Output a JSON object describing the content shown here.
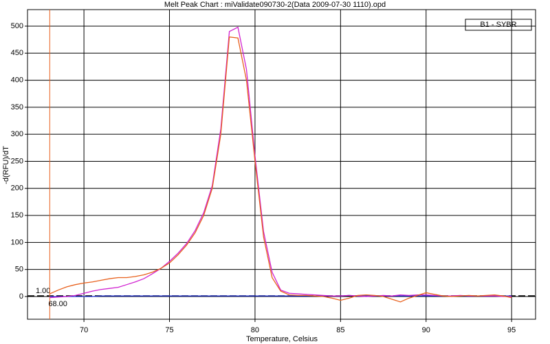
{
  "chart_data": {
    "type": "line",
    "title": "Melt Peak Chart : miValidate090730-2(Data 2009-07-30 1110).opd",
    "x_label": "Temperature, Celsius",
    "y_label": "-d(RFU)/dT",
    "x": [
      68,
      68.5,
      69,
      69.5,
      70,
      70.5,
      71,
      71.5,
      72,
      72.5,
      73,
      73.5,
      74,
      74.5,
      75,
      75.5,
      76,
      76.5,
      77,
      77.5,
      78,
      78.5,
      79,
      79.5,
      80,
      80.5,
      81,
      81.5,
      82,
      82.5,
      83,
      83.5,
      84,
      84.5,
      85,
      85.5,
      86,
      86.5,
      87,
      87.5,
      88,
      88.5,
      89,
      89.5,
      90,
      90.5,
      91,
      91.5,
      92,
      92.5,
      93,
      93.5,
      94,
      94.5,
      95
    ],
    "series": [
      {
        "name": "B1 - SYBR",
        "color": "#e8601c",
        "values": [
          5,
          12,
          18,
          22,
          25,
          27,
          30,
          33,
          35,
          35,
          37,
          40,
          45,
          52,
          62,
          77,
          95,
          118,
          150,
          200,
          300,
          480,
          478,
          400,
          250,
          110,
          35,
          10,
          3,
          2,
          2,
          1,
          0,
          -3,
          -7,
          -3,
          2,
          3,
          2,
          0,
          -5,
          -10,
          -3,
          2,
          7,
          4,
          1,
          0,
          1,
          2,
          1,
          2,
          3,
          1,
          -2
        ]
      },
      {
        "color": "#d020d0",
        "values": [
          -2,
          -1,
          0,
          2,
          6,
          10,
          13,
          15,
          17,
          22,
          27,
          33,
          42,
          52,
          65,
          80,
          98,
          122,
          155,
          205,
          310,
          490,
          498,
          420,
          260,
          120,
          45,
          12,
          6,
          5,
          4,
          3,
          2,
          1,
          1,
          2,
          1,
          0,
          1,
          2,
          1,
          3,
          2,
          3,
          3,
          2,
          1,
          1,
          2,
          1,
          1,
          1,
          1,
          0,
          0
        ]
      },
      {
        "color": "#2030d0",
        "values": [
          0,
          0,
          0,
          0,
          0,
          0,
          1,
          1,
          1,
          1,
          1,
          1,
          1,
          1,
          1,
          1,
          1,
          1,
          1,
          1,
          1,
          1,
          1,
          1,
          1,
          1,
          1,
          1,
          1,
          1,
          1,
          1,
          1,
          1,
          1,
          2,
          1,
          1,
          1,
          1,
          1,
          1,
          1,
          1,
          1,
          1,
          1,
          1,
          1,
          1,
          1,
          1,
          1,
          1,
          1
        ]
      }
    ],
    "threshold": {
      "value": 1,
      "label": "1.00"
    },
    "start_marker": {
      "value": 68,
      "label": "68.00"
    },
    "xlim": [
      66.7,
      96.4
    ],
    "ylim": [
      -42,
      530.5
    ],
    "xticks": [
      70,
      75,
      80,
      85,
      90,
      95
    ],
    "yticks": [
      0,
      50,
      100,
      150,
      200,
      250,
      300,
      350,
      400,
      450,
      500
    ],
    "grid": true
  }
}
